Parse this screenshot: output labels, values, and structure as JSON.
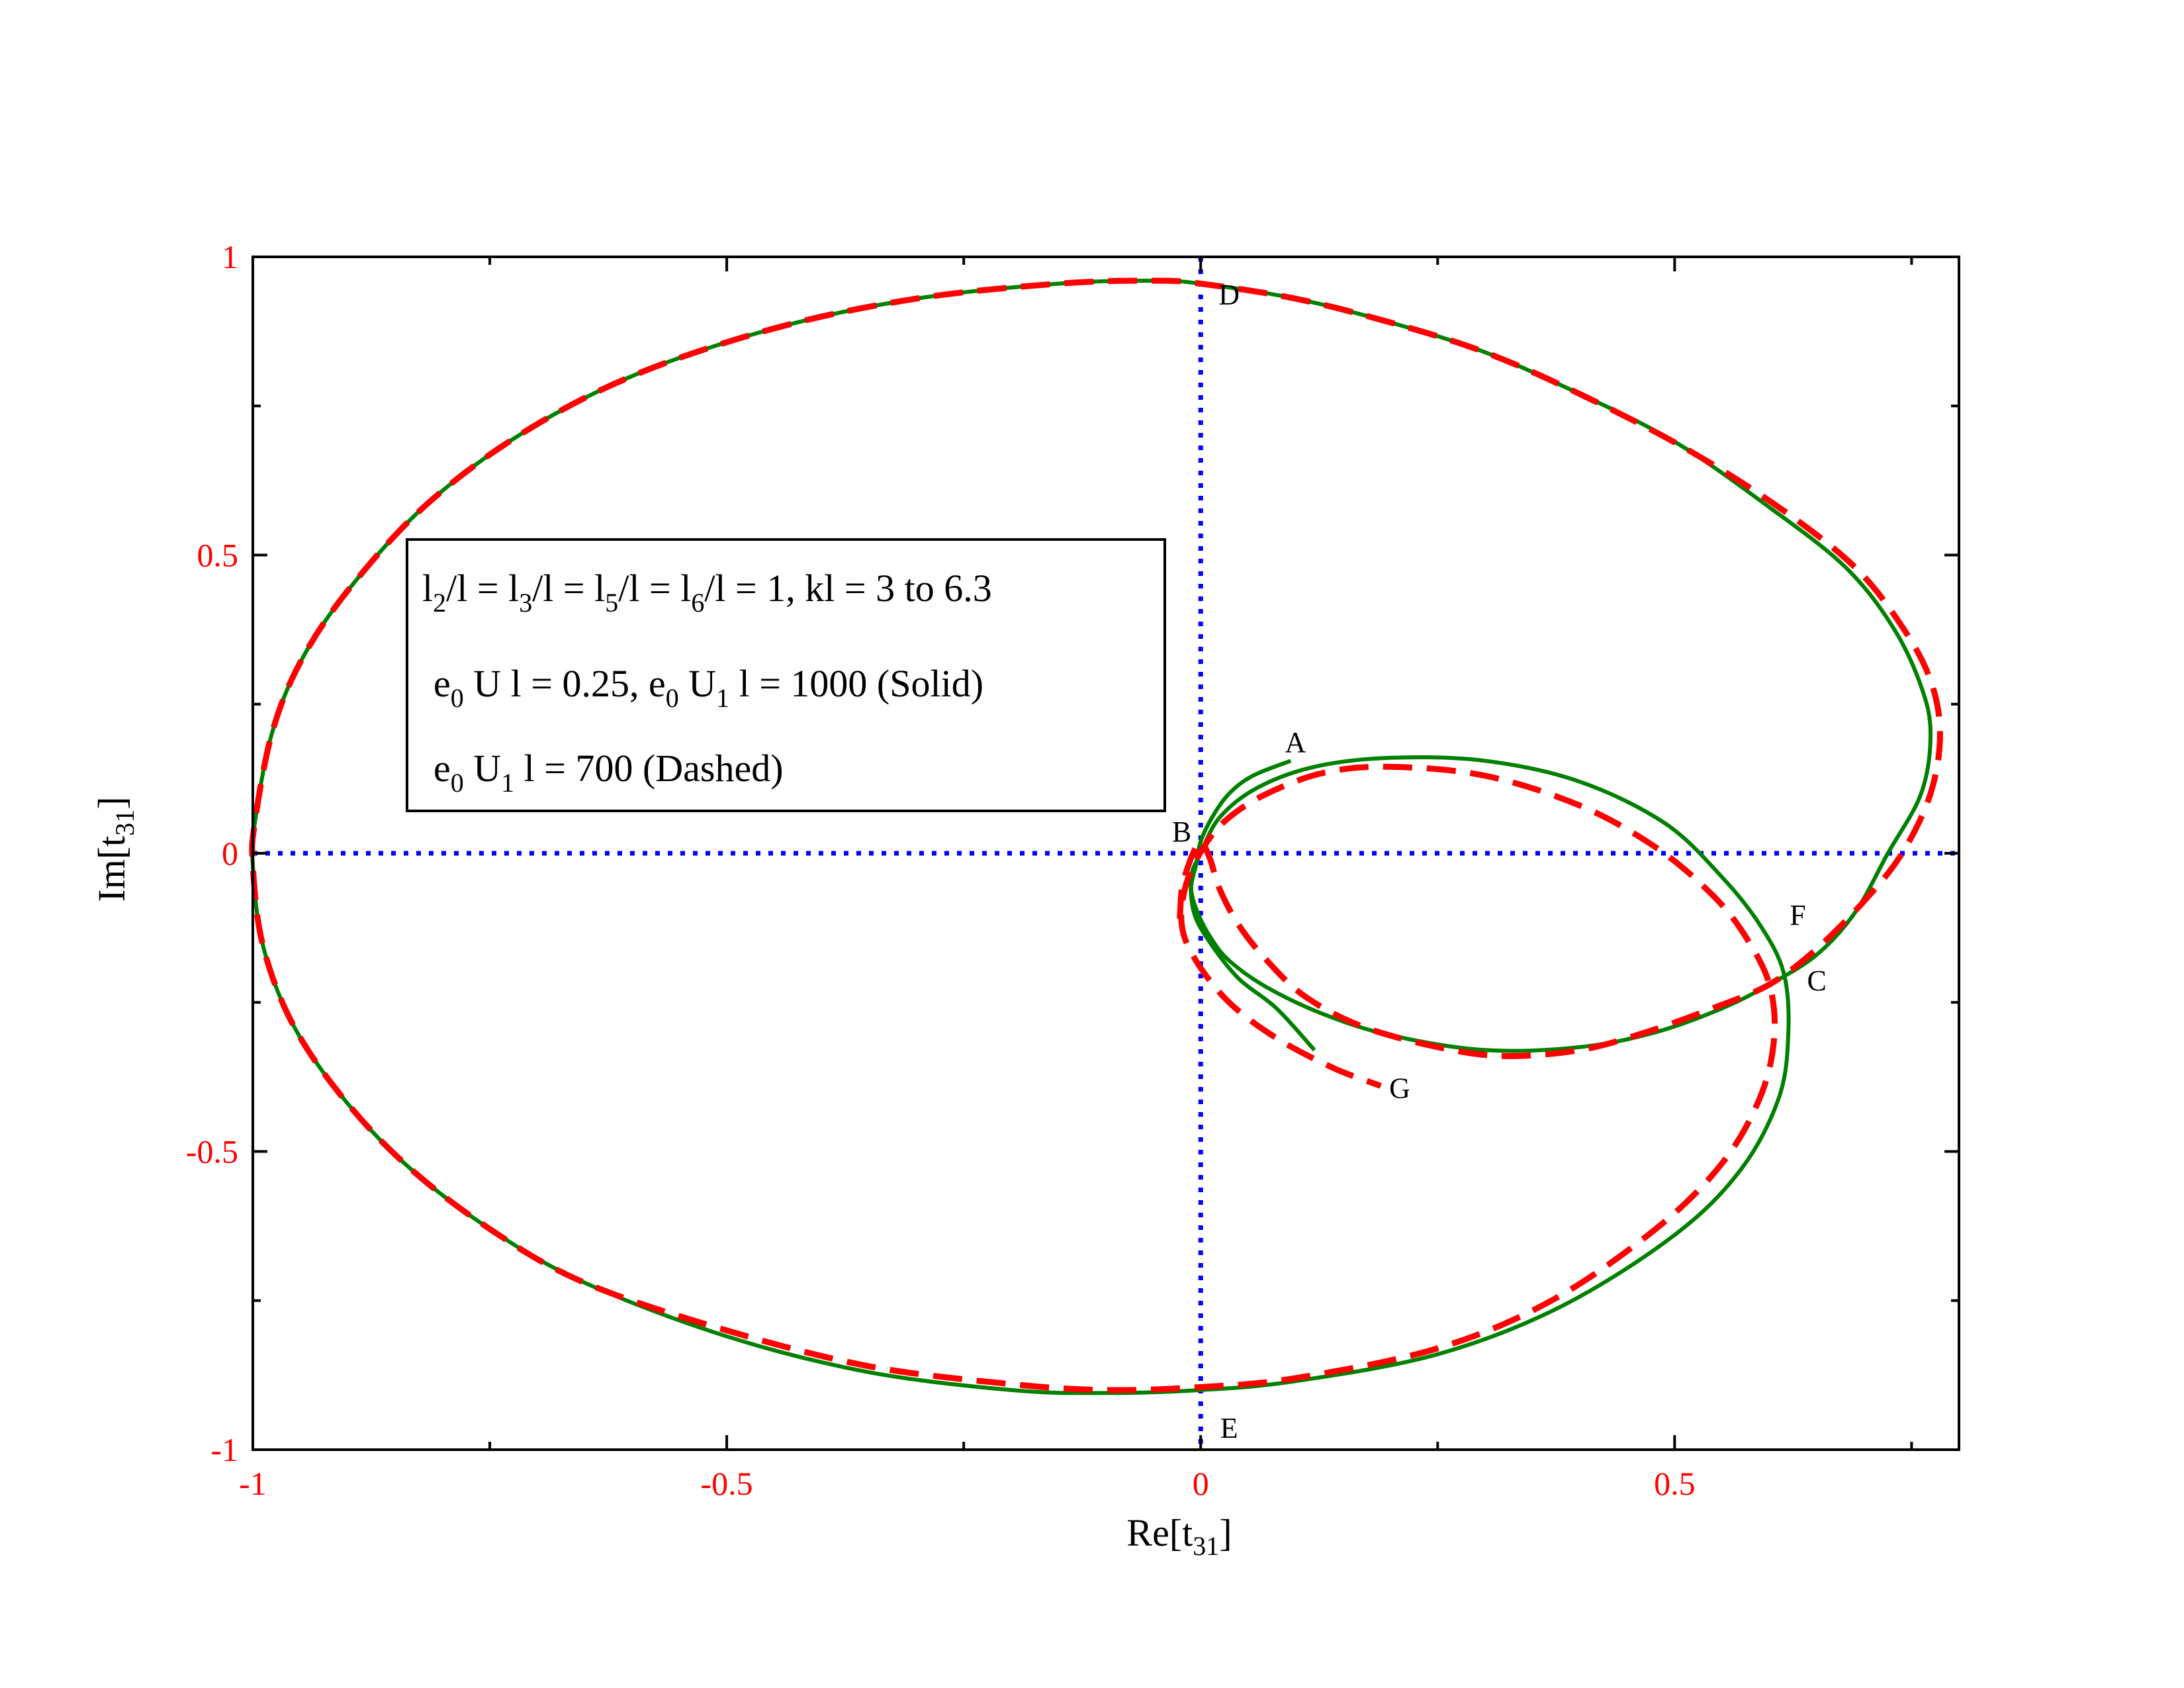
{
  "chart_data": {
    "type": "line",
    "xlabel": {
      "base": "Re[t",
      "sub": "31",
      "end": "]"
    },
    "ylabel": {
      "base": "Im[t",
      "sub": "31",
      "end": "]"
    },
    "xlim": [
      -1,
      0.8
    ],
    "ylim": [
      -1,
      1
    ],
    "x_ticks": [
      {
        "value": -1,
        "label": "-1"
      },
      {
        "value": -0.5,
        "label": "-0.5"
      },
      {
        "value": 0,
        "label": "0"
      },
      {
        "value": 0.5,
        "label": "0.5"
      }
    ],
    "y_ticks": [
      {
        "value": -1,
        "label": "-1"
      },
      {
        "value": -0.5,
        "label": "-0.5"
      },
      {
        "value": 0,
        "label": "0"
      },
      {
        "value": 0.5,
        "label": "0.5"
      },
      {
        "value": 1,
        "label": "1"
      }
    ],
    "x_minor_step": 0.25,
    "y_minor_step": 0.25,
    "grid": false,
    "reference_lines": [
      {
        "orientation": "vertical",
        "value": 0,
        "color": "#0000ff",
        "style": "dotted"
      },
      {
        "orientation": "horizontal",
        "value": 0,
        "color": "#0000ff",
        "style": "dotted"
      }
    ],
    "series": [
      {
        "style": "solid",
        "color": "#008000",
        "points": [
          [
            0.095,
            0.155
          ],
          [
            0.055,
            0.13
          ],
          [
            0.03,
            0.1
          ],
          [
            0.012,
            0.06
          ],
          [
            0.0,
            0.02
          ],
          [
            -0.005,
            -0.02
          ],
          [
            -0.01,
            -0.06
          ],
          [
            -0.003,
            -0.1
          ],
          [
            0.01,
            -0.14
          ],
          [
            0.03,
            -0.18
          ],
          [
            0.07,
            -0.225
          ],
          [
            0.13,
            -0.27
          ],
          [
            0.2,
            -0.305
          ],
          [
            0.3,
            -0.33
          ],
          [
            0.4,
            -0.325
          ],
          [
            0.48,
            -0.3
          ],
          [
            0.55,
            -0.26
          ],
          [
            0.6,
            -0.22
          ],
          [
            0.65,
            -0.17
          ],
          [
            0.69,
            -0.1
          ],
          [
            0.725,
            0.0
          ],
          [
            0.76,
            0.1
          ],
          [
            0.77,
            0.2
          ],
          [
            0.76,
            0.28
          ],
          [
            0.73,
            0.38
          ],
          [
            0.68,
            0.48
          ],
          [
            0.6,
            0.58
          ],
          [
            0.5,
            0.69
          ],
          [
            0.4,
            0.77
          ],
          [
            0.3,
            0.84
          ],
          [
            0.2,
            0.89
          ],
          [
            0.1,
            0.93
          ],
          [
            0.0,
            0.955
          ],
          [
            -0.05,
            0.96
          ],
          [
            -0.15,
            0.955
          ],
          [
            -0.3,
            0.93
          ],
          [
            -0.45,
            0.88
          ],
          [
            -0.6,
            0.8
          ],
          [
            -0.72,
            0.7
          ],
          [
            -0.82,
            0.58
          ],
          [
            -0.9,
            0.44
          ],
          [
            -0.95,
            0.32
          ],
          [
            -0.98,
            0.2
          ],
          [
            -0.998,
            0.05
          ],
          [
            -1.0,
            -0.02
          ],
          [
            -0.99,
            -0.15
          ],
          [
            -0.96,
            -0.28
          ],
          [
            -0.91,
            -0.4
          ],
          [
            -0.84,
            -0.52
          ],
          [
            -0.75,
            -0.63
          ],
          [
            -0.65,
            -0.72
          ],
          [
            -0.5,
            -0.81
          ],
          [
            -0.35,
            -0.87
          ],
          [
            -0.2,
            -0.9
          ],
          [
            -0.1,
            -0.905
          ],
          [
            0.0,
            -0.9
          ],
          [
            0.1,
            -0.885
          ],
          [
            0.25,
            -0.84
          ],
          [
            0.38,
            -0.76
          ],
          [
            0.5,
            -0.64
          ],
          [
            0.57,
            -0.53
          ],
          [
            0.61,
            -0.41
          ],
          [
            0.62,
            -0.3
          ],
          [
            0.615,
            -0.2
          ],
          [
            0.59,
            -0.12
          ],
          [
            0.55,
            -0.04
          ],
          [
            0.49,
            0.05
          ],
          [
            0.4,
            0.12
          ],
          [
            0.3,
            0.155
          ],
          [
            0.2,
            0.16
          ],
          [
            0.12,
            0.145
          ],
          [
            0.06,
            0.11
          ],
          [
            0.02,
            0.06
          ],
          [
            0.0,
            0.0
          ],
          [
            -0.01,
            -0.04
          ],
          [
            -0.007,
            -0.1
          ],
          [
            0.01,
            -0.15
          ],
          [
            0.04,
            -0.21
          ],
          [
            0.08,
            -0.26
          ],
          [
            0.12,
            -0.33
          ]
        ]
      },
      {
        "style": "dashed",
        "color": "#ff0000",
        "points": [
          [
            -0.022,
            -0.11
          ],
          [
            -0.02,
            -0.06
          ],
          [
            -0.015,
            -0.03
          ],
          [
            -0.008,
            0.0
          ],
          [
            0.0,
            0.02
          ],
          [
            0.01,
            -0.01
          ],
          [
            0.02,
            -0.06
          ],
          [
            0.04,
            -0.12
          ],
          [
            0.07,
            -0.18
          ],
          [
            0.11,
            -0.24
          ],
          [
            0.17,
            -0.29
          ],
          [
            0.25,
            -0.325
          ],
          [
            0.32,
            -0.34
          ],
          [
            0.4,
            -0.33
          ],
          [
            0.47,
            -0.3
          ],
          [
            0.54,
            -0.26
          ],
          [
            0.6,
            -0.22
          ],
          [
            0.65,
            -0.16
          ],
          [
            0.7,
            -0.08
          ],
          [
            0.74,
            0.0
          ],
          [
            0.77,
            0.1
          ],
          [
            0.78,
            0.2
          ],
          [
            0.77,
            0.29
          ],
          [
            0.74,
            0.38
          ],
          [
            0.69,
            0.48
          ],
          [
            0.61,
            0.58
          ],
          [
            0.51,
            0.68
          ],
          [
            0.4,
            0.77
          ],
          [
            0.3,
            0.84
          ],
          [
            0.2,
            0.89
          ],
          [
            0.1,
            0.93
          ],
          [
            0.0,
            0.955
          ],
          [
            -0.05,
            0.96
          ],
          [
            -0.15,
            0.955
          ],
          [
            -0.3,
            0.93
          ],
          [
            -0.45,
            0.88
          ],
          [
            -0.6,
            0.8
          ],
          [
            -0.72,
            0.7
          ],
          [
            -0.82,
            0.58
          ],
          [
            -0.9,
            0.44
          ],
          [
            -0.95,
            0.32
          ],
          [
            -0.98,
            0.2
          ],
          [
            -0.998,
            0.05
          ],
          [
            -1.0,
            -0.02
          ],
          [
            -0.99,
            -0.15
          ],
          [
            -0.96,
            -0.28
          ],
          [
            -0.91,
            -0.4
          ],
          [
            -0.84,
            -0.52
          ],
          [
            -0.75,
            -0.63
          ],
          [
            -0.65,
            -0.72
          ],
          [
            -0.5,
            -0.8
          ],
          [
            -0.35,
            -0.86
          ],
          [
            -0.2,
            -0.89
          ],
          [
            -0.1,
            -0.9
          ],
          [
            0.0,
            -0.895
          ],
          [
            0.1,
            -0.88
          ],
          [
            0.25,
            -0.83
          ],
          [
            0.37,
            -0.75
          ],
          [
            0.48,
            -0.63
          ],
          [
            0.55,
            -0.52
          ],
          [
            0.59,
            -0.41
          ],
          [
            0.605,
            -0.31
          ],
          [
            0.6,
            -0.22
          ],
          [
            0.575,
            -0.14
          ],
          [
            0.54,
            -0.07
          ],
          [
            0.48,
            0.01
          ],
          [
            0.4,
            0.08
          ],
          [
            0.3,
            0.13
          ],
          [
            0.2,
            0.145
          ],
          [
            0.13,
            0.135
          ],
          [
            0.07,
            0.1
          ],
          [
            0.03,
            0.06
          ],
          [
            0.005,
            0.015
          ],
          [
            -0.015,
            -0.05
          ],
          [
            -0.02,
            -0.12
          ],
          [
            -0.005,
            -0.18
          ],
          [
            0.03,
            -0.25
          ],
          [
            0.08,
            -0.31
          ],
          [
            0.14,
            -0.36
          ],
          [
            0.19,
            -0.39
          ]
        ]
      }
    ],
    "annotations": [
      {
        "text": "A",
        "x": 0.1,
        "y": 0.17
      },
      {
        "text": "B",
        "x": -0.02,
        "y": 0.02
      },
      {
        "text": "C",
        "x": 0.65,
        "y": -0.23
      },
      {
        "text": "D",
        "x": 0.03,
        "y": 0.92
      },
      {
        "text": "E",
        "x": 0.03,
        "y": -0.98
      },
      {
        "text": "F",
        "x": 0.63,
        "y": -0.12
      },
      {
        "text": "G",
        "x": 0.21,
        "y": -0.41
      }
    ],
    "legend": {
      "placement": "upper-left",
      "lines": [
        [
          {
            "t": "l"
          },
          {
            "t": "2",
            "sub": true
          },
          {
            "t": "/l = l"
          },
          {
            "t": "3",
            "sub": true
          },
          {
            "t": "/l = l"
          },
          {
            "t": "5",
            "sub": true
          },
          {
            "t": "/l = l"
          },
          {
            "t": "6",
            "sub": true
          },
          {
            "t": "/l = 1, kl = 3 to 6.3"
          }
        ],
        [
          {
            "t": "e"
          },
          {
            "t": "0",
            "sub": true
          },
          {
            "t": " U l = 0.25, e"
          },
          {
            "t": "0",
            "sub": true
          },
          {
            "t": " U"
          },
          {
            "t": "1",
            "sub": true
          },
          {
            "t": " l = 1000 (Solid)"
          }
        ],
        [
          {
            "t": "e"
          },
          {
            "t": "0",
            "sub": true
          },
          {
            "t": " U"
          },
          {
            "t": "1",
            "sub": true
          },
          {
            "t": " l = 700 (Dashed)"
          }
        ]
      ]
    }
  }
}
